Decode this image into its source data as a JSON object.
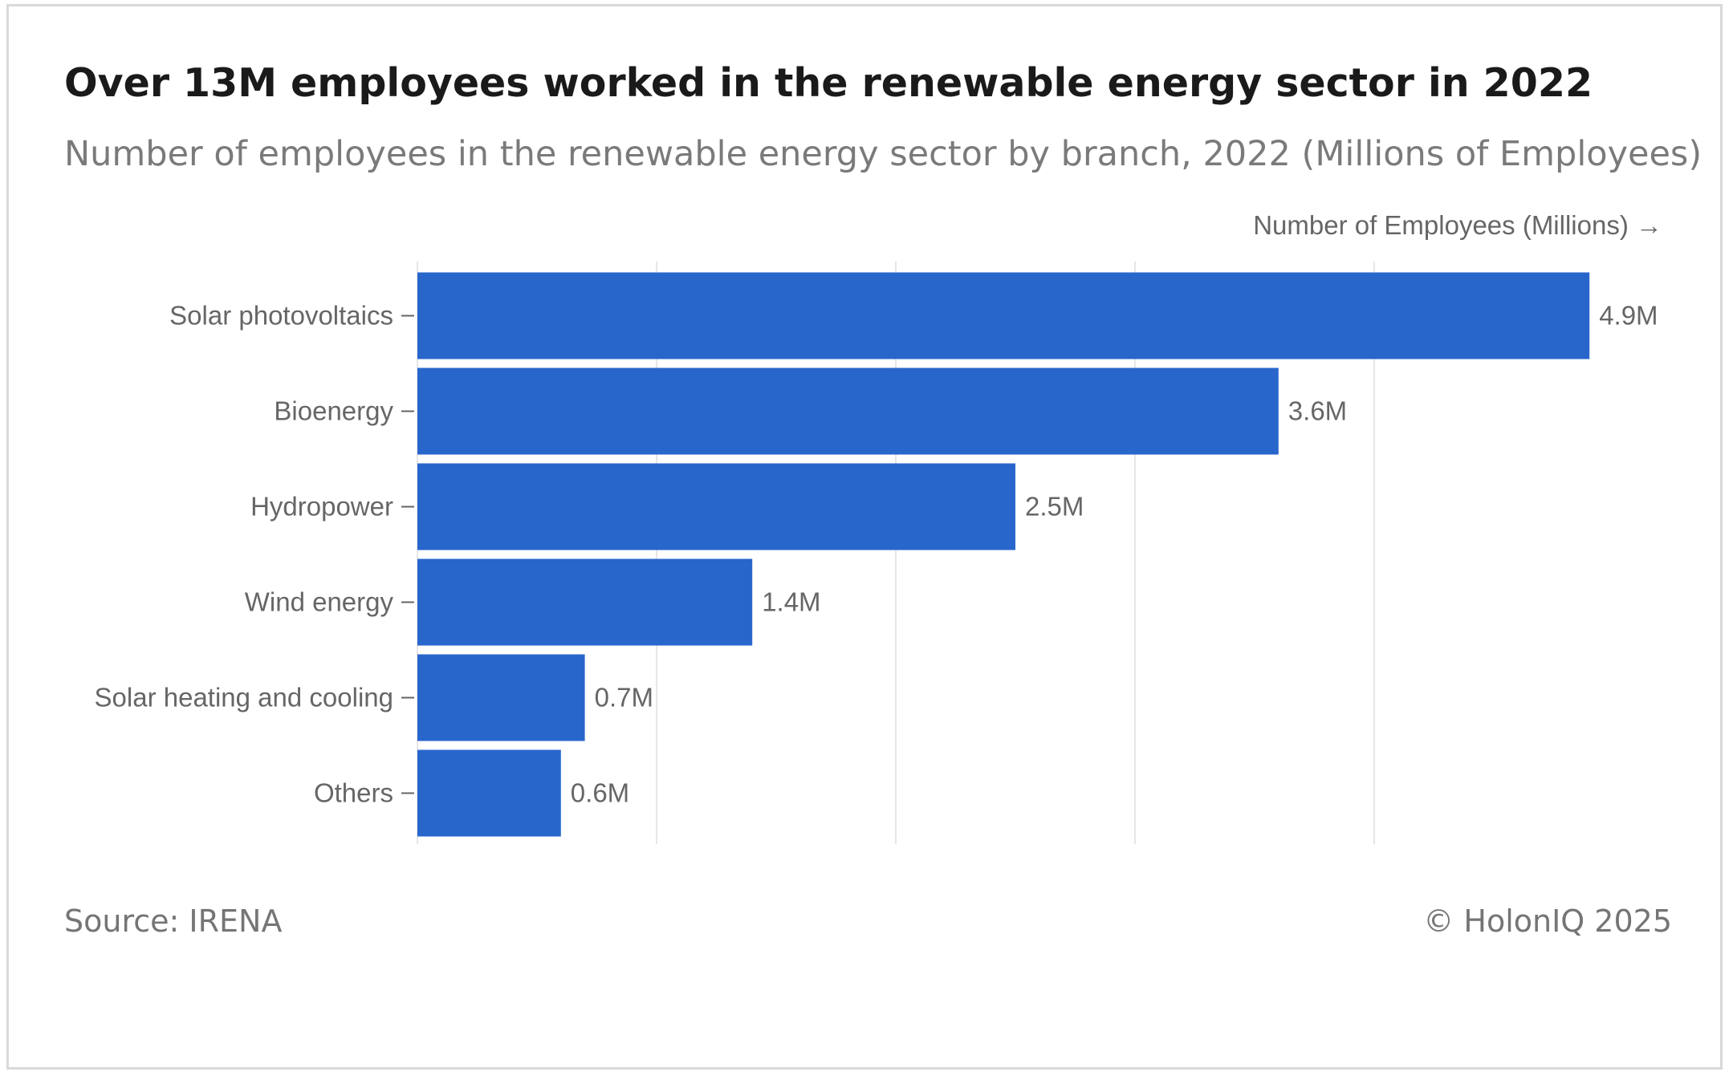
{
  "title": "Over 13M employees worked in the renewable energy sector in 2022",
  "subtitle": "Number of employees in the renewable energy sector by branch, 2022 (Millions of Employees)",
  "source": "Source: IRENA",
  "copyright": "© HolonIQ 2025",
  "colors": {
    "bar": "#2966CC",
    "grid": "#e6e6e6",
    "axis_text": "#666666",
    "value_text": "#666666"
  },
  "chart_data": {
    "type": "bar",
    "orientation": "horizontal",
    "xlabel": "Number of Employees (Millions) →",
    "xlim": [
      0,
      5
    ],
    "grid": true,
    "categories": [
      "Solar photovoltaics",
      "Bioenergy",
      "Hydropower",
      "Wind energy",
      "Solar heating and cooling",
      "Others"
    ],
    "values": [
      4.9,
      3.6,
      2.5,
      1.4,
      0.7,
      0.6
    ],
    "value_labels": [
      "4.9M",
      "3.6M",
      "2.5M",
      "1.4M",
      "0.7M",
      "0.6M"
    ]
  }
}
